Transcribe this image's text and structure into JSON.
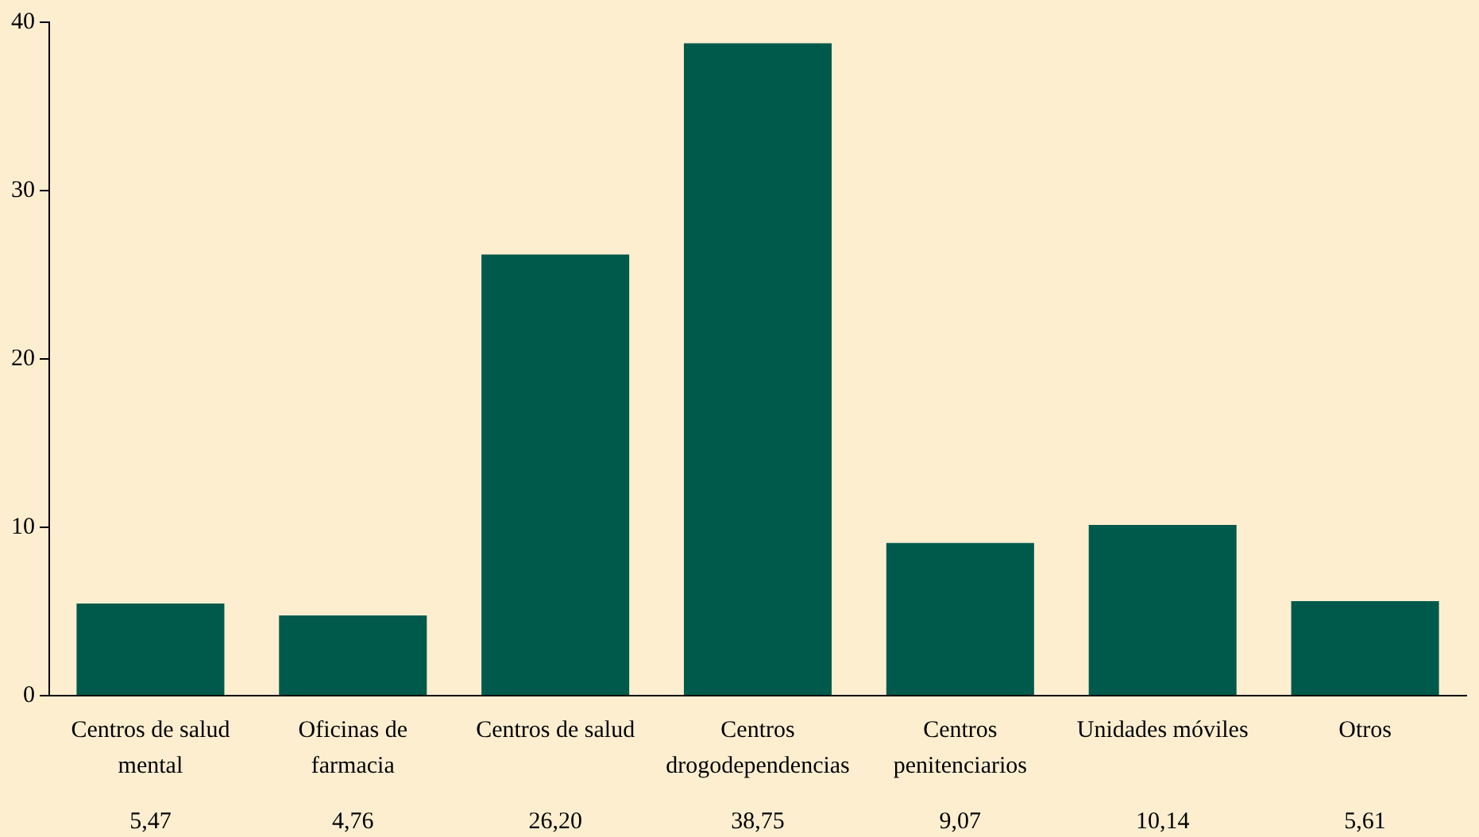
{
  "chart_data": {
    "type": "bar",
    "categories": [
      "Centros de salud mental",
      "Oficinas de farmacia",
      "Centros de salud",
      "Centros drogodependencias",
      "Centros penitenciarios",
      "Unidades móviles",
      "Otros"
    ],
    "values": [
      5.47,
      4.76,
      26.2,
      38.75,
      9.07,
      10.14,
      5.61
    ],
    "value_labels": [
      "5,47",
      "4,76",
      "26,20",
      "38,75",
      "9,07",
      "10,14",
      "5,61"
    ],
    "color": "#005a4b",
    "ylim": [
      0,
      40
    ],
    "yticks": [
      0,
      10,
      20,
      30,
      40
    ],
    "grid": false,
    "legend": false
  }
}
